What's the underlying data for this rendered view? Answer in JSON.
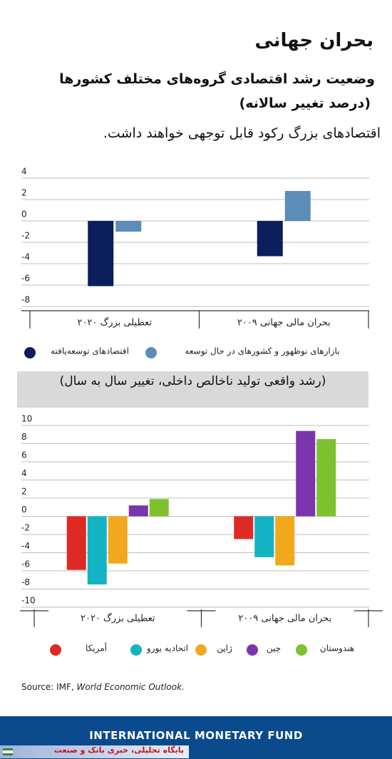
{
  "header": {
    "title": "بحران جهانی",
    "subtitle": "وضعیت رشد اقتصادی گروه‌های مختلف کشورها",
    "subtitle_unit": "(درصد تغییر سالانه)",
    "lead": "اقتصادهای بزرگ رکود قابل توجهی خواهند داشت."
  },
  "chart_data": [
    {
      "type": "bar",
      "categories": [
        "بحران مالی جهانی ۲۰۰۹",
        "تعطیلی بزرگ ۲۰۲۰"
      ],
      "series": [
        {
          "name": "بازارهای نوظهور و کشورهای در حال توسعه",
          "color": "#5b8db8",
          "values": [
            2.8,
            -1.0
          ]
        },
        {
          "name": "اقتصادهای توسعه‌یافته",
          "color": "#0b1f5c",
          "values": [
            -3.3,
            -6.1
          ]
        }
      ],
      "ylim": [
        -8.4,
        4
      ],
      "yticks": [
        4,
        2,
        0,
        -2,
        -4,
        -6,
        -8
      ],
      "grid": true
    },
    {
      "type": "bar",
      "title": "(رشد واقعی تولید ناخالص داخلی، تغییر سال به سال)",
      "categories": [
        "بحران مالی جهانی ۲۰۰۹",
        "تعطیلی بزرگ ۲۰۲۰"
      ],
      "series": [
        {
          "name": "هندوستان",
          "color": "#7dc22e",
          "values": [
            8.5,
            1.9
          ]
        },
        {
          "name": "چین",
          "color": "#7b35ac",
          "values": [
            9.4,
            1.2
          ]
        },
        {
          "name": "ژاپن",
          "color": "#f2a81d",
          "values": [
            -5.4,
            -5.2
          ]
        },
        {
          "name": "اتحادیه یورو",
          "color": "#14b3c4",
          "values": [
            -4.5,
            -7.5
          ]
        },
        {
          "name": "أمریکا",
          "color": "#dd2a25",
          "values": [
            -2.5,
            -5.9
          ]
        }
      ],
      "ylim": [
        -10,
        10
      ],
      "yticks": [
        10,
        8,
        6,
        4,
        2,
        0,
        -2,
        -4,
        -6,
        -8,
        -10
      ],
      "grid": true
    }
  ],
  "source": {
    "prefix": "Source: IMF,",
    "title": "World Economic Outlook."
  },
  "footer": {
    "org": "INTERNATIONAL MONETARY FUND",
    "watermark": "پایگاه تحلیلی، خبری بانک و صنعت"
  }
}
